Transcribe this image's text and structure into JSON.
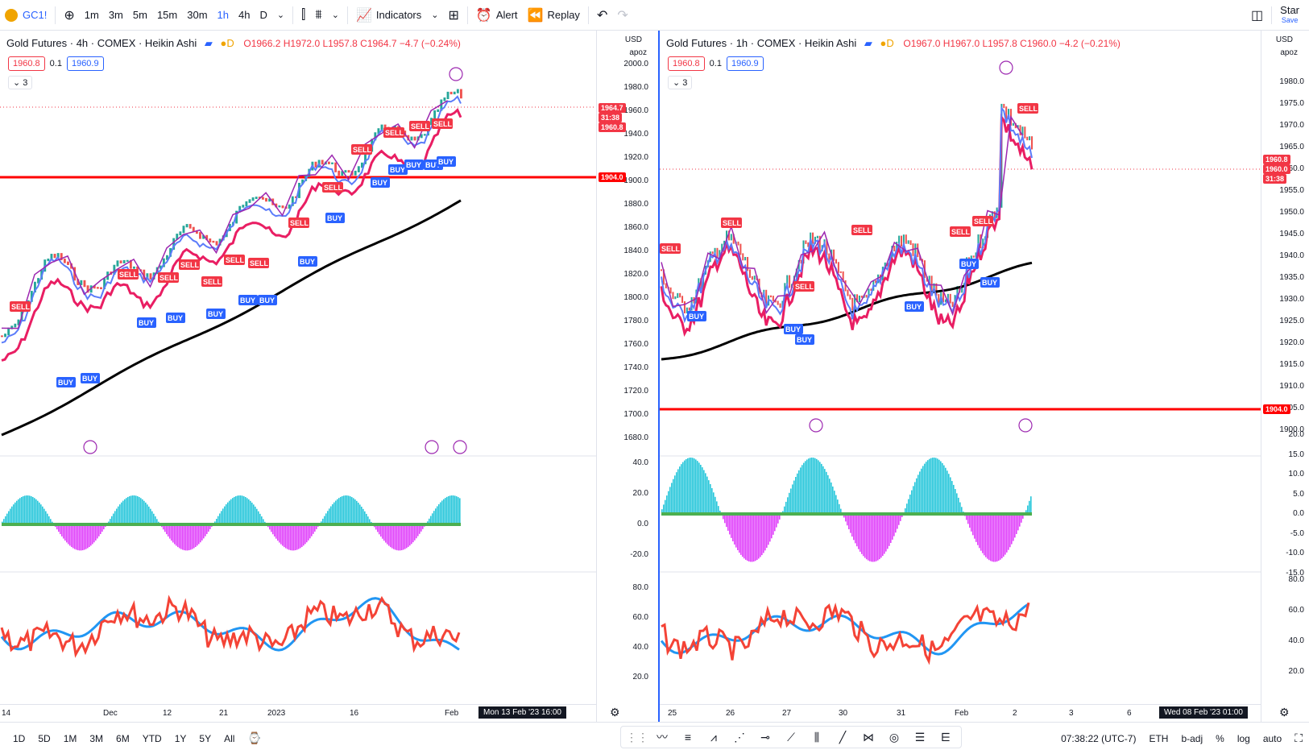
{
  "topbar": {
    "symbol": "GC1!",
    "intervals": [
      "1m",
      "3m",
      "5m",
      "15m",
      "30m",
      "1h",
      "4h",
      "D"
    ],
    "active_interval": "1h",
    "indicators_label": "Indicators",
    "alert_label": "Alert",
    "replay_label": "Replay",
    "right_label": "Star",
    "right_sublabel": "Save"
  },
  "left": {
    "title": "Gold Futures · 4h · COMEX · Heikin Ashi",
    "ohlc": "O1966.2 H1972.0 L1957.8 C1964.7 −4.7 (−0.24%)",
    "bid": "1960.8",
    "spread": "0.1",
    "ask": "1960.9",
    "collapse": "3",
    "currency": "USD",
    "unit": "apoz",
    "price_axis": [
      "2000.0",
      "1980.0",
      "1960.0",
      "1940.0",
      "1920.0",
      "1900.0",
      "1880.0",
      "1860.0",
      "1840.0",
      "1820.0",
      "1800.0",
      "1780.0",
      "1760.0",
      "1740.0",
      "1720.0",
      "1700.0",
      "1680.0"
    ],
    "price_tag": "1964.7",
    "price_tag_time": "31:38",
    "price_tag2": "1960.8",
    "level_tag": "1904.0",
    "osc_axis": [
      "40.0",
      "20.0",
      "0.0",
      "-20.0"
    ],
    "rsi_axis": [
      "80.0",
      "60.0",
      "40.0",
      "20.0"
    ],
    "time_axis": [
      "14",
      "Dec",
      "12",
      "21",
      "2023",
      "16",
      "Feb"
    ],
    "time_cursor": "Mon 13 Feb '23   16:00"
  },
  "right": {
    "title": "Gold Futures · 1h · COMEX · Heikin Ashi",
    "ohlc": "O1967.0 H1967.0 L1957.8 C1960.0 −4.2 (−0.21%)",
    "bid": "1960.8",
    "spread": "0.1",
    "ask": "1960.9",
    "collapse": "3",
    "currency": "USD",
    "unit": "apoz",
    "price_axis": [
      "1980.0",
      "1975.0",
      "1970.0",
      "1965.0",
      "1960.0",
      "1955.0",
      "1950.0",
      "1945.0",
      "1940.0",
      "1935.0",
      "1930.0",
      "1925.0",
      "1920.0",
      "1915.0",
      "1910.0",
      "1905.0",
      "1900.0"
    ],
    "price_tag": "1960.8",
    "price_tag2": "1960.0",
    "price_tag_time": "31:38",
    "level_tag": "1904.0",
    "osc_axis": [
      "20.0",
      "15.0",
      "10.0",
      "5.0",
      "0.0",
      "-5.0",
      "-10.0",
      "-15.0"
    ],
    "rsi_axis": [
      "80.0",
      "60.0",
      "40.0",
      "20.0"
    ],
    "time_axis": [
      "25",
      "26",
      "27",
      "30",
      "31",
      "Feb",
      "2",
      "3",
      "6"
    ],
    "time_cursor": "Wed 08 Feb '23   01:00"
  },
  "signals": {
    "buy": "BUY",
    "sell": "SELL"
  },
  "bottombar": {
    "ranges": [
      "1D",
      "5D",
      "1M",
      "3M",
      "6M",
      "YTD",
      "1Y",
      "5Y",
      "All"
    ],
    "clock": "07:38:22 (UTC-7)",
    "session": "ETH",
    "adj": "b-adj",
    "pct": "%",
    "log": "log",
    "auto": "auto"
  },
  "colors": {
    "buy": "#2962ff",
    "sell": "#f23645",
    "level": "#ff0000",
    "ma_black": "#000000",
    "ma_red": "#e91e63",
    "hist_pos": "#26c6da",
    "hist_neg": "#e040fb"
  }
}
